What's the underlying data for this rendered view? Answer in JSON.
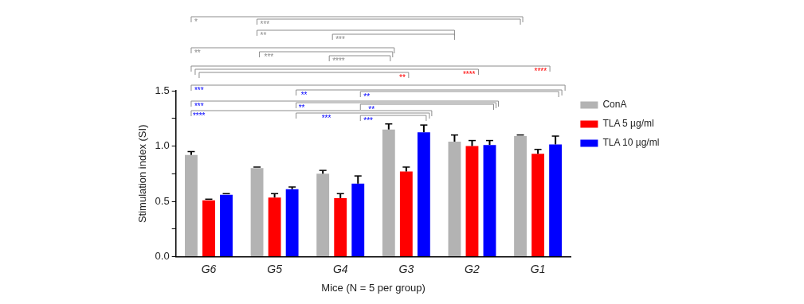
{
  "chart_data": {
    "type": "bar",
    "xlabel": "Mice (N = 5 per group)",
    "ylabel": "Stimulation index (SI)",
    "categories": [
      "G6",
      "G5",
      "G4",
      "G3",
      "G2",
      "G1"
    ],
    "series": [
      {
        "name": "ConA",
        "color": "#b3b3b3",
        "values": [
          0.92,
          0.8,
          0.75,
          1.15,
          1.04,
          1.09
        ],
        "errors": [
          [
            0.92,
            0.95
          ],
          [
            0.8,
            0.81
          ],
          [
            0.75,
            0.78
          ],
          [
            1.15,
            1.2
          ],
          [
            1.04,
            1.1
          ],
          [
            1.09,
            1.1
          ]
        ]
      },
      {
        "name": "TLA 5 µg/ml",
        "color": "#ff0000",
        "values": [
          0.51,
          0.535,
          0.53,
          0.77,
          1.0,
          0.93
        ],
        "errors": [
          [
            0.51,
            0.52
          ],
          [
            0.535,
            0.57
          ],
          [
            0.53,
            0.57
          ],
          [
            0.77,
            0.81
          ],
          [
            1.0,
            1.05
          ],
          [
            0.93,
            0.97
          ]
        ]
      },
      {
        "name": "TLA 10 µg/ml",
        "color": "#0000ff",
        "values": [
          0.56,
          0.61,
          0.66,
          1.125,
          1.01,
          1.015
        ],
        "errors": [
          [
            0.56,
            0.57
          ],
          [
            0.61,
            0.63
          ],
          [
            0.66,
            0.73
          ],
          [
            1.125,
            1.19
          ],
          [
            1.01,
            1.05
          ],
          [
            1.015,
            1.09
          ]
        ]
      }
    ],
    "ylim": [
      0,
      1.5
    ],
    "yticks": [
      {
        "value": 0,
        "label": "0.0"
      },
      {
        "value": 0.25,
        "label": null
      },
      {
        "value": 0.5,
        "label": "0.5"
      },
      {
        "value": 0.75,
        "label": null
      },
      {
        "value": 1,
        "label": "1.0"
      },
      {
        "value": 1.25,
        "label": null
      },
      {
        "value": 1.5,
        "label": "1.5"
      }
    ],
    "grid": false,
    "legend": "right",
    "annotations": [
      "*",
      "***",
      "**",
      "***",
      "**",
      "***",
      "****",
      "****",
      "****",
      "**",
      "***",
      "**",
      "**",
      "***",
      "**",
      "**",
      "****",
      "***",
      "***"
    ]
  }
}
